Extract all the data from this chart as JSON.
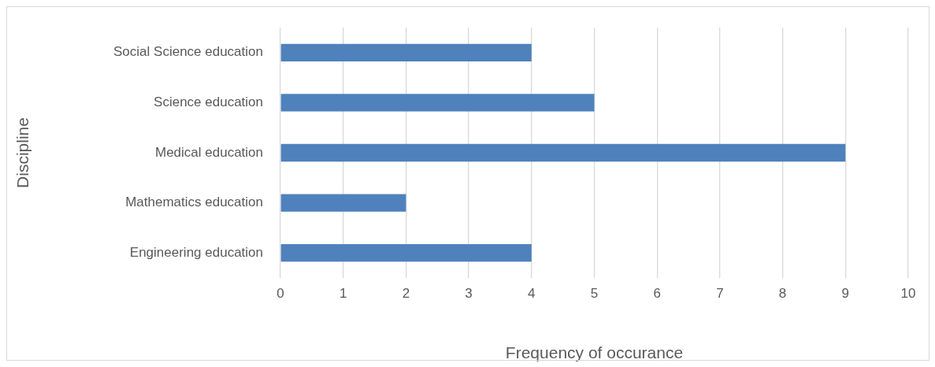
{
  "chart_data": {
    "type": "bar",
    "orientation": "horizontal",
    "categories": [
      "Social Science education",
      "Science education",
      "Medical education",
      "Mathematics education",
      "Engineering education"
    ],
    "values": [
      4,
      5,
      9,
      2,
      4
    ],
    "color": "#4f81bd",
    "xlabel": "Frequency of occurance",
    "ylabel": "Discipline",
    "xlim": [
      0,
      10
    ],
    "xticks": [
      0,
      1,
      2,
      3,
      4,
      5,
      6,
      7,
      8,
      9,
      10
    ],
    "grid": "x"
  }
}
